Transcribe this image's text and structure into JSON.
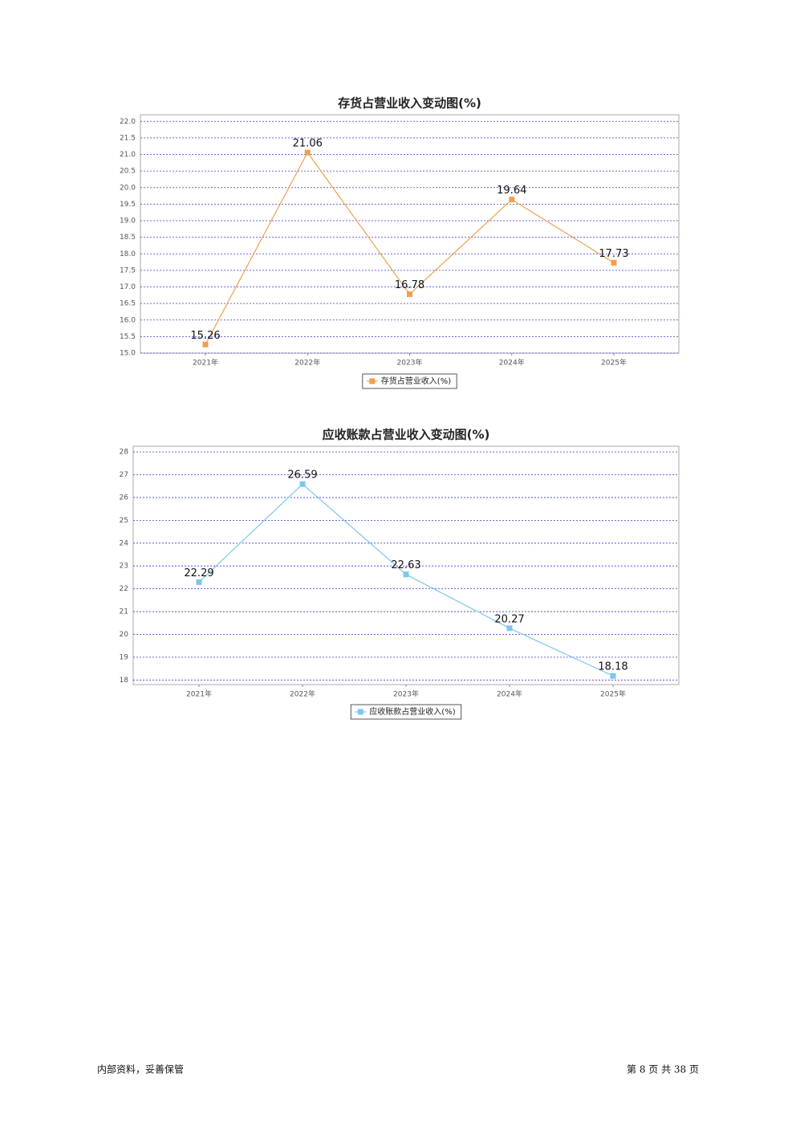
{
  "chart_data": [
    {
      "type": "line",
      "title": "存货占营业收入变动图(%)",
      "categories": [
        "2021年",
        "2022年",
        "2023年",
        "2024年",
        "2025年"
      ],
      "series": [
        {
          "name": "存货占营业收入(%)",
          "color": "#f0a04b",
          "values": [
            15.26,
            21.06,
            16.78,
            19.64,
            17.73
          ]
        }
      ],
      "ylim": [
        15,
        22.2
      ],
      "yticks": [
        {
          "value": 15,
          "label": "15.0"
        },
        {
          "value": 15.5,
          "label": "15.5"
        },
        {
          "value": 16,
          "label": "16.0"
        },
        {
          "value": 16.5,
          "label": "16.5"
        },
        {
          "value": 17,
          "label": "17.0"
        },
        {
          "value": 17.5,
          "label": "17.5"
        },
        {
          "value": 18,
          "label": "18.0"
        },
        {
          "value": 18.5,
          "label": "18.5"
        },
        {
          "value": 19,
          "label": "19.0"
        },
        {
          "value": 19.5,
          "label": "19.5"
        },
        {
          "value": 20,
          "label": "20.0"
        },
        {
          "value": 20.5,
          "label": "20.5"
        },
        {
          "value": 21,
          "label": "21.0"
        },
        {
          "value": 21.5,
          "label": "21.5"
        },
        {
          "value": 22,
          "label": "22.0"
        }
      ],
      "grid": true,
      "legend": "bottom"
    },
    {
      "type": "line",
      "title": "应收账款占营业收入变动图(%)",
      "categories": [
        "2021年",
        "2022年",
        "2023年",
        "2024年",
        "2025年"
      ],
      "series": [
        {
          "name": "应收账款占营业收入(%)",
          "color": "#7cc6ee",
          "values": [
            22.29,
            26.59,
            22.63,
            20.27,
            18.18
          ]
        }
      ],
      "ylim": [
        17.8,
        28.25
      ],
      "yticks": [
        18,
        19,
        20,
        21,
        22,
        23,
        24,
        25,
        26,
        27,
        28
      ],
      "grid": true,
      "legend": "bottom"
    }
  ],
  "footer": {
    "left": "内部资料，妥善保管",
    "right": "第 8 页 共 38 页"
  }
}
